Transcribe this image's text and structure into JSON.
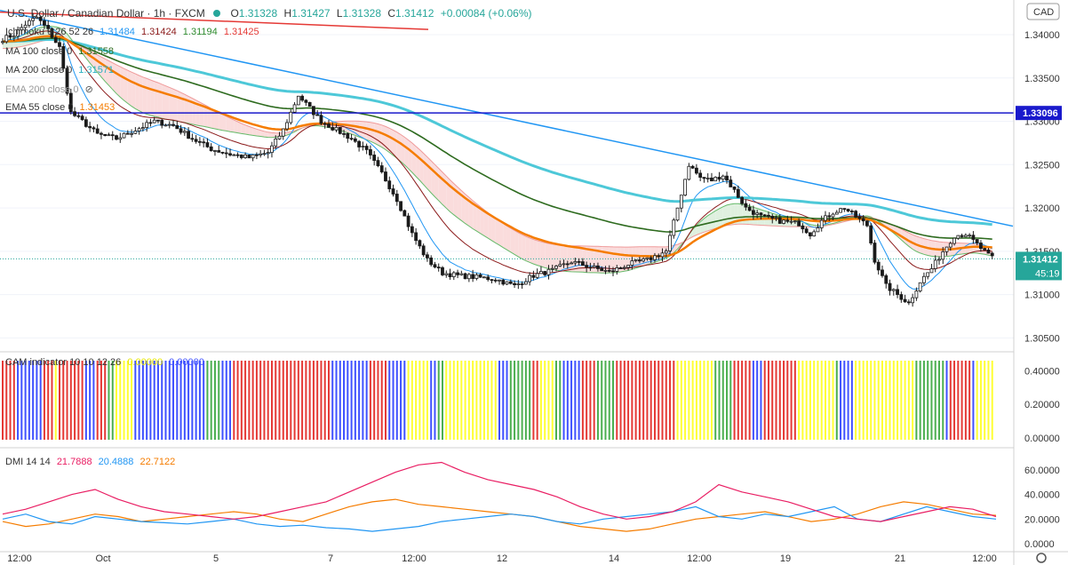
{
  "header": {
    "symbol": "U.S. Dollar / Canadian Dollar · 1h · FXCM",
    "open_label": "O",
    "open": "1.31328",
    "high_label": "H",
    "high": "1.31427",
    "low_label": "L",
    "low": "1.31328",
    "close_label": "C",
    "close": "1.31412",
    "change": "+0.00084 (+0.06%)",
    "currency_badge": "CAD"
  },
  "legends": {
    "ichimoku": {
      "name": "Ichimoku 9 26 52 26",
      "v1": "1.31484",
      "v2": "1.31424",
      "v3": "1.31194",
      "v4": "1.31425"
    },
    "ma100": {
      "name": "MA 100 close 0",
      "value": "1.31558"
    },
    "ma200": {
      "name": "MA 200 close 0",
      "value": "1.31571"
    },
    "ema200": {
      "name": "EMA 200 close 0",
      "value": ""
    },
    "ema55": {
      "name": "EMA 55 close 0",
      "value": "1.31453"
    },
    "cam": {
      "name": "CAM indicator 10 10 12 26",
      "v1": "0.00000",
      "v2": "0.00000"
    },
    "dmi": {
      "name": "DMI 14 14",
      "v1": "21.7888",
      "v2": "20.4888",
      "v3": "22.7122"
    }
  },
  "price_scale": {
    "ticks": [
      "1.34000",
      "1.33500",
      "1.33000",
      "1.32500",
      "1.32000",
      "1.31500",
      "1.31000",
      "1.30500"
    ],
    "hline_label": "1.33096",
    "last_price_label": "1.31412",
    "countdown": "45:19"
  },
  "cam_scale": {
    "ticks": [
      "0.40000",
      "0.20000",
      "0.00000"
    ]
  },
  "dmi_scale": {
    "ticks": [
      "60.0000",
      "40.0000",
      "20.0000",
      "0.0000"
    ]
  },
  "time_axis": {
    "labels": [
      "12:00",
      "Oct",
      "5",
      "7",
      "12:00",
      "12",
      "14",
      "12:00",
      "19",
      "21",
      "12:00"
    ]
  },
  "colors": {
    "candle": "#1a1a1a",
    "ema55": "#f57c00",
    "ma100": "#2e6b1f",
    "ma200": "#4dc8d8",
    "trendline_blue": "#2196f3",
    "trendline_red": "#e53935",
    "hline": "#1a1acc",
    "tenkan": "#2196f3",
    "kijun": "#8b1a1a",
    "span_a": "#66bb6a",
    "span_b": "#ef9a9a",
    "cloud_bear": "#fadcdc",
    "cloud_bull": "#dff0df",
    "cam_red": "#e53935",
    "cam_blue": "#3f51ff",
    "cam_green": "#4caf50",
    "cam_yellow": "#ffff33",
    "dmi_plus": "#2196f3",
    "dmi_minus": "#e91e63",
    "adx": "#f57c00"
  },
  "chart_data": {
    "type": "candlestick",
    "title": "U.S. Dollar / Canadian Dollar · 1h · FXCM",
    "ylim": [
      1.3035,
      1.344
    ],
    "close_path": [
      [
        0,
        1.3395
      ],
      [
        3,
        1.34
      ],
      [
        6,
        1.3412
      ],
      [
        9,
        1.342
      ],
      [
        12,
        1.3405
      ],
      [
        15,
        1.3385
      ],
      [
        18,
        1.331
      ],
      [
        21,
        1.33
      ],
      [
        25,
        1.3285
      ],
      [
        30,
        1.328
      ],
      [
        35,
        1.329
      ],
      [
        40,
        1.33
      ],
      [
        45,
        1.3295
      ],
      [
        50,
        1.328
      ],
      [
        55,
        1.3268
      ],
      [
        60,
        1.3262
      ],
      [
        65,
        1.3258
      ],
      [
        70,
        1.3264
      ],
      [
        74,
        1.329
      ],
      [
        78,
        1.333
      ],
      [
        81,
        1.3315
      ],
      [
        84,
        1.33
      ],
      [
        88,
        1.329
      ],
      [
        92,
        1.328
      ],
      [
        96,
        1.3265
      ],
      [
        100,
        1.324
      ],
      [
        104,
        1.321
      ],
      [
        108,
        1.317
      ],
      [
        112,
        1.314
      ],
      [
        116,
        1.3125
      ],
      [
        120,
        1.3122
      ],
      [
        125,
        1.312
      ],
      [
        130,
        1.3118
      ],
      [
        135,
        1.311
      ],
      [
        140,
        1.3122
      ],
      [
        145,
        1.3128
      ],
      [
        150,
        1.3138
      ],
      [
        155,
        1.3132
      ],
      [
        160,
        1.3126
      ],
      [
        165,
        1.3135
      ],
      [
        170,
        1.314
      ],
      [
        175,
        1.315
      ],
      [
        178,
        1.32
      ],
      [
        181,
        1.325
      ],
      [
        184,
        1.3235
      ],
      [
        187,
        1.3232
      ],
      [
        190,
        1.3238
      ],
      [
        193,
        1.322
      ],
      [
        196,
        1.32
      ],
      [
        200,
        1.319
      ],
      [
        205,
        1.3185
      ],
      [
        210,
        1.3182
      ],
      [
        213,
        1.317
      ],
      [
        216,
        1.3185
      ],
      [
        219,
        1.3195
      ],
      [
        222,
        1.32
      ],
      [
        225,
        1.319
      ],
      [
        228,
        1.318
      ],
      [
        230,
        1.314
      ],
      [
        233,
        1.311
      ],
      [
        236,
        1.31
      ],
      [
        239,
        1.309
      ],
      [
        242,
        1.3115
      ],
      [
        245,
        1.313
      ],
      [
        248,
        1.315
      ],
      [
        251,
        1.3168
      ],
      [
        254,
        1.317
      ],
      [
        257,
        1.3158
      ],
      [
        260,
        1.3145
      ],
      [
        262,
        1.3141
      ]
    ],
    "hline": 1.33096,
    "trendlines": [
      {
        "name": "blue",
        "points": [
          [
            "start",
            1.3428
          ],
          [
            "end",
            1.317
          ]
        ]
      },
      {
        "name": "red",
        "points": [
          [
            "start",
            1.3425
          ],
          [
            "mid",
            1.3405
          ]
        ]
      }
    ],
    "dmi": {
      "plus_di": [
        20,
        24,
        18,
        16,
        22,
        20,
        18,
        17,
        16,
        18,
        20,
        16,
        14,
        15,
        13,
        12,
        10,
        12,
        14,
        18,
        20,
        22,
        24,
        22,
        18,
        16,
        20,
        22,
        24,
        26,
        30,
        22,
        20,
        24,
        22,
        26,
        30,
        20,
        18,
        24,
        30,
        26,
        22,
        20
      ],
      "minus_di": [
        24,
        28,
        34,
        40,
        44,
        36,
        30,
        26,
        24,
        22,
        20,
        22,
        26,
        30,
        34,
        42,
        50,
        58,
        64,
        66,
        58,
        52,
        48,
        44,
        38,
        30,
        24,
        20,
        22,
        26,
        34,
        48,
        42,
        38,
        34,
        28,
        22,
        20,
        18,
        22,
        26,
        30,
        28,
        22
      ],
      "adx": [
        18,
        14,
        16,
        20,
        24,
        22,
        18,
        20,
        22,
        24,
        26,
        24,
        20,
        18,
        24,
        30,
        34,
        36,
        32,
        30,
        28,
        26,
        24,
        22,
        18,
        14,
        12,
        10,
        12,
        16,
        20,
        22,
        24,
        26,
        22,
        18,
        20,
        24,
        30,
        34,
        32,
        28,
        24,
        23
      ]
    }
  }
}
